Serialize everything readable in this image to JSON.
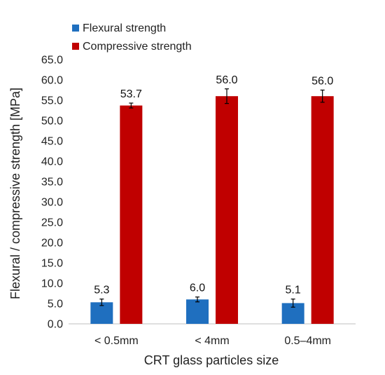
{
  "chart_data": {
    "type": "bar",
    "title": "",
    "xlabel": "CRT glass particles size",
    "ylabel": "Flexural / compressive strength [MPa]",
    "ylim": [
      0,
      65
    ],
    "ytick_step": 5,
    "ytick_labels": [
      "0.0",
      "5.0",
      "10.0",
      "15.0",
      "20.0",
      "25.0",
      "30.0",
      "35.0",
      "40.0",
      "45.0",
      "50.0",
      "55.0",
      "60.0",
      "65.0"
    ],
    "categories": [
      "< 0.5mm",
      "< 4mm",
      "0.5–4mm"
    ],
    "series": [
      {
        "name": "Flexural strength",
        "color": "#1f6fbf",
        "values": [
          5.3,
          6.0,
          5.1
        ],
        "errors": [
          0.8,
          0.6,
          1.0
        ],
        "labels": [
          "5.3",
          "6.0",
          "5.1"
        ]
      },
      {
        "name": "Compressive strength",
        "color": "#c00000",
        "values": [
          53.7,
          56.0,
          56.0
        ],
        "errors": [
          0.6,
          1.8,
          1.5
        ],
        "labels": [
          "53.7",
          "56.0",
          "56.0"
        ]
      }
    ],
    "grid": false,
    "legend_position": "top-left"
  }
}
